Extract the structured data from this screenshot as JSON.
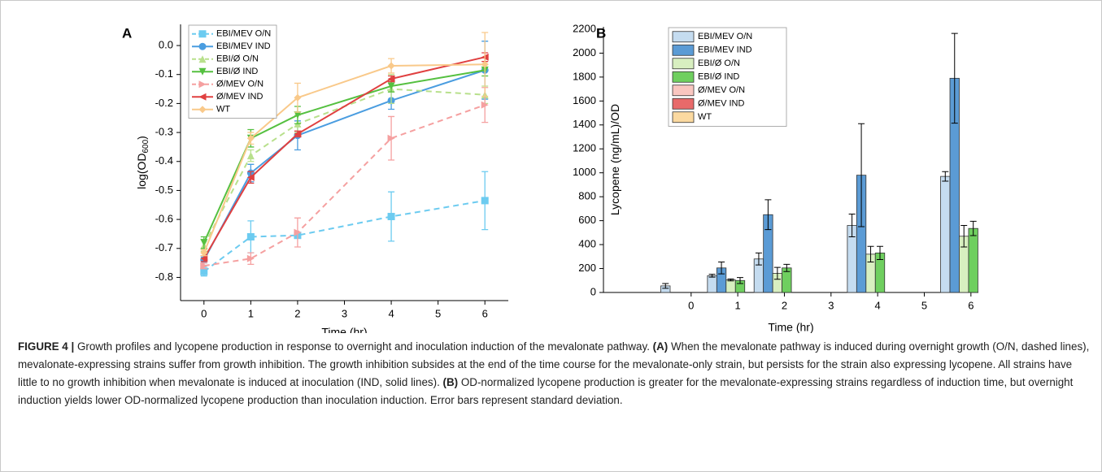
{
  "chart_data": [
    {
      "type": "line",
      "panel_label": "A",
      "xlabel": "Time (hr)",
      "ylabel": "log(OD",
      "ylabel_sub": "600",
      "ylabel_end": ")",
      "x": [
        0,
        1,
        2,
        4,
        6
      ],
      "xlim": [
        -0.5,
        6.5
      ],
      "xticks": [
        0,
        1,
        2,
        3,
        4,
        5,
        6
      ],
      "ylim": [
        -0.88,
        0.073
      ],
      "yticks": [
        -0.8,
        -0.7,
        -0.6,
        -0.5,
        -0.4,
        -0.3,
        -0.2,
        -0.1,
        {
          "value": 0,
          "label": "0.0"
        }
      ],
      "legend": "top-left",
      "series": [
        {
          "name": "EBI/MEV  O/N",
          "color": "#6ccbf0",
          "dashed": true,
          "marker": "square",
          "values": [
            -0.78,
            -0.66,
            -0.655,
            -0.59,
            -0.535
          ],
          "errors": [
            0.015,
            0.055,
            0.01,
            0.085,
            0.1
          ]
        },
        {
          "name": "EBI/MEV  IND",
          "color": "#4a9de0",
          "dashed": false,
          "marker": "circle",
          "values": [
            -0.74,
            -0.44,
            -0.31,
            -0.19,
            -0.085
          ],
          "errors": [
            0.01,
            0.03,
            0.05,
            0.03,
            0.1
          ]
        },
        {
          "name": "EBI/Ø  O/N",
          "color": "#b8e08c",
          "dashed": true,
          "marker": "up",
          "values": [
            -0.69,
            -0.38,
            -0.27,
            -0.15,
            -0.17
          ],
          "errors": [
            0.02,
            0.02,
            0.03,
            0.05,
            0.03
          ]
        },
        {
          "name": "EBI/Ø  IND",
          "color": "#55c040",
          "dashed": false,
          "marker": "down",
          "values": [
            -0.68,
            -0.32,
            -0.24,
            -0.14,
            -0.085
          ],
          "errors": [
            0.02,
            0.03,
            0.03,
            0.02,
            0.02
          ]
        },
        {
          "name": "Ø/MEV  O/N",
          "color": "#f5a0a0",
          "dashed": true,
          "marker": "right",
          "values": [
            -0.76,
            -0.735,
            -0.645,
            -0.32,
            -0.205
          ],
          "errors": [
            0.01,
            0.02,
            0.05,
            0.075,
            0.06
          ]
        },
        {
          "name": "Ø/MEV  IND",
          "color": "#e04040",
          "dashed": false,
          "marker": "left",
          "values": [
            -0.735,
            -0.455,
            -0.305,
            -0.115,
            -0.04
          ],
          "errors": [
            0.01,
            0.02,
            0.01,
            0.01,
            0.015
          ]
        },
        {
          "name": "WT",
          "color": "#f9c98a",
          "dashed": false,
          "marker": "diamond",
          "values": [
            -0.715,
            -0.32,
            -0.18,
            -0.07,
            -0.065
          ],
          "errors": [
            0.01,
            0.02,
            0.05,
            0.025,
            0.11
          ]
        }
      ]
    },
    {
      "type": "bar",
      "panel_label": "B",
      "xlabel": "Time (hr)",
      "ylabel": "Lycopene (ng/mL)/OD",
      "x": [
        0,
        1,
        2,
        4,
        6
      ],
      "xlim": [
        -1.88,
        6.16
      ],
      "xticks": [
        0,
        1,
        2,
        3,
        4,
        5,
        6
      ],
      "ylim": [
        0,
        2220
      ],
      "yticks": [
        0,
        200,
        400,
        600,
        800,
        1000,
        1200,
        1400,
        1600,
        1800,
        2000,
        2200
      ],
      "legend": "top-left",
      "series": [
        {
          "name": "EBI/MEV  O/N",
          "color": "#c5dcf0",
          "values": [
            55,
            140,
            280,
            560,
            970
          ],
          "errors": [
            20,
            12,
            50,
            95,
            40
          ]
        },
        {
          "name": "EBI/MEV  IND",
          "color": "#5b9bd5",
          "values": [
            null,
            205,
            650,
            980,
            1790
          ],
          "errors": [
            null,
            50,
            125,
            430,
            375
          ]
        },
        {
          "name": "EBI/Ø  O/N",
          "color": "#d8efc0",
          "values": [
            null,
            105,
            160,
            320,
            470
          ],
          "errors": [
            null,
            8,
            50,
            65,
            90
          ]
        },
        {
          "name": "EBI/Ø  IND",
          "color": "#6fcf5f",
          "values": [
            null,
            100,
            205,
            330,
            535
          ],
          "errors": [
            null,
            25,
            30,
            55,
            60
          ]
        },
        {
          "name": "Ø/MEV  O/N",
          "color": "#f9c6c0",
          "values": [
            null,
            null,
            null,
            null,
            null
          ]
        },
        {
          "name": "Ø/MEV  IND",
          "color": "#e86a6a",
          "values": [
            null,
            null,
            null,
            null,
            null
          ]
        },
        {
          "name": "WT",
          "color": "#fbd9a0",
          "values": [
            null,
            null,
            null,
            null,
            null
          ]
        }
      ]
    }
  ],
  "caption": {
    "label": "FIGURE 4 |",
    "intro": "Growth profiles and lycopene production in response to overnight and inoculation induction of the mevalonate pathway.",
    "a_label": "(A)",
    "a_text": "When the mevalonate pathway is induced during overnight growth (O/N, dashed lines), mevalonate-expressing strains suffer from growth inhibition. The growth inhibition subsides at the end of the time course for the mevalonate-only strain, but persists for the strain also expressing lycopene. All strains have little to no growth inhibition when mevalonate is induced at inoculation (IND, solid lines).",
    "b_label": "(B)",
    "b_text": "OD-normalized lycopene production is greater for the mevalonate-expressing strains regardless of induction time, but overnight induction yields lower OD-normalized lycopene production than inoculation induction. Error bars represent standard deviation."
  }
}
